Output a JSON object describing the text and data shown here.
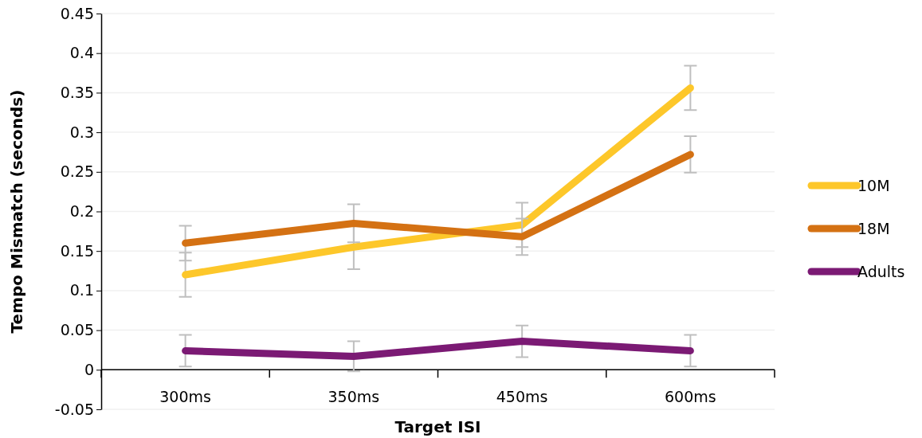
{
  "chart_data": {
    "type": "line",
    "xlabel": "Target ISI",
    "ylabel": "Tempo Mismatch (seconds)",
    "categories": [
      "300ms",
      "350ms",
      "450ms",
      "600ms"
    ],
    "series": [
      {
        "name": "10M",
        "color": "#fdc72a",
        "values": [
          0.12,
          0.155,
          0.183,
          0.356
        ],
        "errors": [
          0.028,
          0.028,
          0.028,
          0.028
        ]
      },
      {
        "name": "18M",
        "color": "#d47113",
        "values": [
          0.16,
          0.185,
          0.168,
          0.272
        ],
        "errors": [
          0.022,
          0.024,
          0.023,
          0.023
        ]
      },
      {
        "name": "Adults",
        "color": "#7b1a74",
        "values": [
          0.024,
          0.017,
          0.036,
          0.024
        ],
        "errors": [
          0.02,
          0.019,
          0.02,
          0.02
        ]
      }
    ],
    "ylim": [
      -0.05,
      0.45
    ],
    "yticks": [
      -0.05,
      0,
      0.05,
      0.1,
      0.15,
      0.2,
      0.25,
      0.3,
      0.35,
      0.4,
      0.45
    ],
    "grid": "y",
    "legend": "right",
    "marker": "none",
    "line_style": "solid"
  }
}
